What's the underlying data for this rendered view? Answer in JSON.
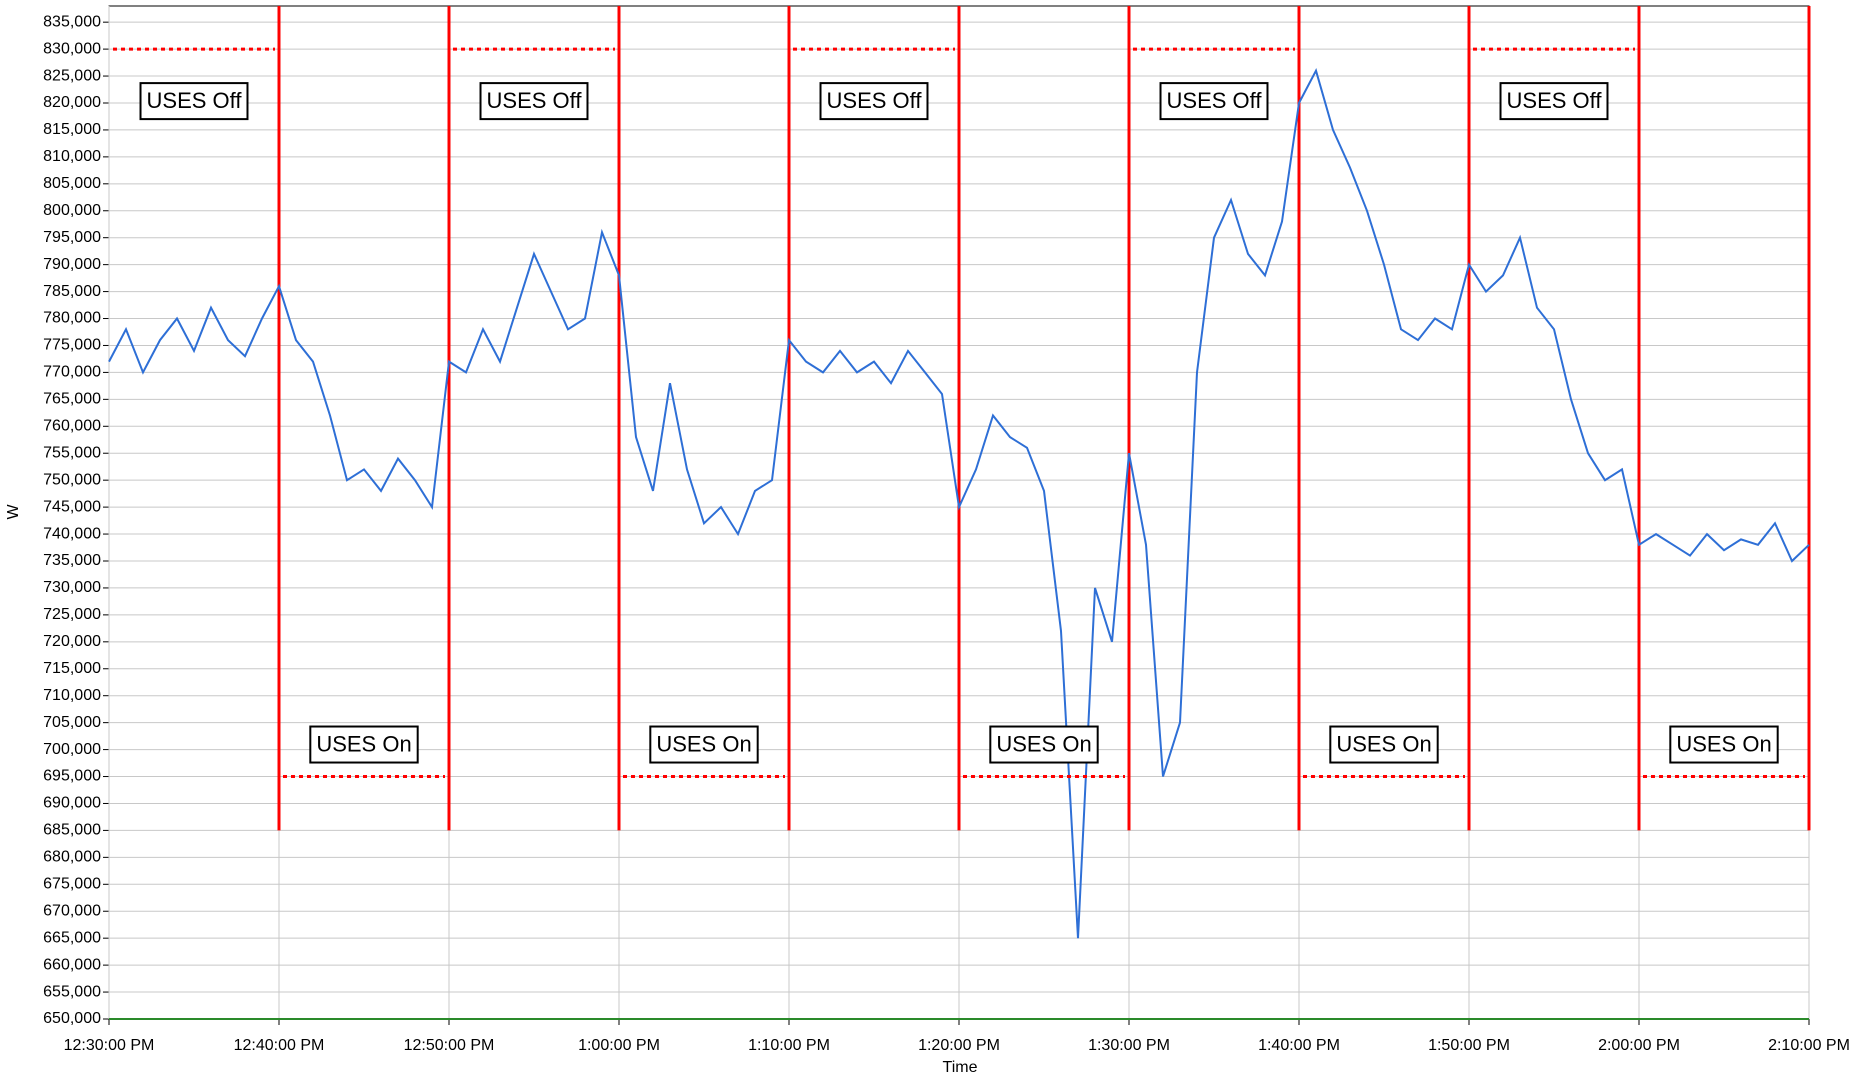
{
  "chart_data": {
    "type": "line",
    "x_label": "Time",
    "y_label": "W",
    "x": [
      "12:30:00 PM",
      "12:31:00 PM",
      "12:32:00 PM",
      "12:33:00 PM",
      "12:34:00 PM",
      "12:35:00 PM",
      "12:36:00 PM",
      "12:37:00 PM",
      "12:38:00 PM",
      "12:39:00 PM",
      "12:40:00 PM",
      "12:41:00 PM",
      "12:42:00 PM",
      "12:43:00 PM",
      "12:44:00 PM",
      "12:45:00 PM",
      "12:46:00 PM",
      "12:47:00 PM",
      "12:48:00 PM",
      "12:49:00 PM",
      "12:50:00 PM",
      "12:51:00 PM",
      "12:52:00 PM",
      "12:53:00 PM",
      "12:54:00 PM",
      "12:55:00 PM",
      "12:56:00 PM",
      "12:57:00 PM",
      "12:58:00 PM",
      "12:59:00 PM",
      "1:00:00 PM",
      "1:01:00 PM",
      "1:02:00 PM",
      "1:03:00 PM",
      "1:04:00 PM",
      "1:05:00 PM",
      "1:06:00 PM",
      "1:07:00 PM",
      "1:08:00 PM",
      "1:09:00 PM",
      "1:10:00 PM",
      "1:11:00 PM",
      "1:12:00 PM",
      "1:13:00 PM",
      "1:14:00 PM",
      "1:15:00 PM",
      "1:16:00 PM",
      "1:17:00 PM",
      "1:18:00 PM",
      "1:19:00 PM",
      "1:20:00 PM",
      "1:21:00 PM",
      "1:22:00 PM",
      "1:23:00 PM",
      "1:24:00 PM",
      "1:25:00 PM",
      "1:26:00 PM",
      "1:27:00 PM",
      "1:28:00 PM",
      "1:29:00 PM",
      "1:30:00 PM",
      "1:31:00 PM",
      "1:32:00 PM",
      "1:33:00 PM",
      "1:34:00 PM",
      "1:35:00 PM",
      "1:36:00 PM",
      "1:37:00 PM",
      "1:38:00 PM",
      "1:39:00 PM",
      "1:40:00 PM",
      "1:41:00 PM",
      "1:42:00 PM",
      "1:43:00 PM",
      "1:44:00 PM",
      "1:45:00 PM",
      "1:46:00 PM",
      "1:47:00 PM",
      "1:48:00 PM",
      "1:49:00 PM",
      "1:50:00 PM",
      "1:51:00 PM",
      "1:52:00 PM",
      "1:53:00 PM",
      "1:54:00 PM",
      "1:55:00 PM",
      "1:56:00 PM",
      "1:57:00 PM",
      "1:58:00 PM",
      "1:59:00 PM",
      "2:00:00 PM",
      "2:01:00 PM",
      "2:02:00 PM",
      "2:03:00 PM",
      "2:04:00 PM",
      "2:05:00 PM",
      "2:06:00 PM",
      "2:07:00 PM",
      "2:08:00 PM",
      "2:09:00 PM",
      "2:10:00 PM"
    ],
    "series": [
      {
        "name": "W",
        "color": "#2e6fd6",
        "values": [
          772000,
          778000,
          770000,
          776000,
          780000,
          774000,
          782000,
          776000,
          773000,
          780000,
          786000,
          776000,
          772000,
          762000,
          750000,
          752000,
          748000,
          754000,
          750000,
          745000,
          772000,
          770000,
          778000,
          772000,
          782000,
          792000,
          785000,
          778000,
          780000,
          796000,
          788000,
          758000,
          748000,
          768000,
          752000,
          742000,
          745000,
          740000,
          748000,
          750000,
          776000,
          772000,
          770000,
          774000,
          770000,
          772000,
          768000,
          774000,
          770000,
          766000,
          745000,
          752000,
          762000,
          758000,
          756000,
          748000,
          722000,
          665000,
          730000,
          720000,
          755000,
          738000,
          695000,
          705000,
          770000,
          795000,
          802000,
          792000,
          788000,
          798000,
          820000,
          826000,
          815000,
          808000,
          800000,
          790000,
          778000,
          776000,
          780000,
          778000,
          790000,
          785000,
          788000,
          795000,
          782000,
          778000,
          765000,
          755000,
          750000,
          752000,
          738000,
          740000,
          738000,
          736000,
          740000,
          737000,
          739000,
          738000,
          742000,
          735000,
          738000
        ]
      }
    ],
    "xlim": [
      "12:30:00 PM",
      "2:10:00 PM"
    ],
    "xticks": [
      "12:30:00 PM",
      "12:40:00 PM",
      "12:50:00 PM",
      "1:00:00 PM",
      "1:10:00 PM",
      "1:20:00 PM",
      "1:30:00 PM",
      "1:40:00 PM",
      "1:50:00 PM",
      "2:00:00 PM",
      "2:10:00 PM"
    ],
    "ylim": [
      650000,
      838000
    ],
    "yticks": [
      {
        "value": 650000,
        "label": "650,000"
      },
      {
        "value": 655000,
        "label": "655,000"
      },
      {
        "value": 660000,
        "label": "660,000"
      },
      {
        "value": 665000,
        "label": "665,000"
      },
      {
        "value": 670000,
        "label": "670,000"
      },
      {
        "value": 675000,
        "label": "675,000"
      },
      {
        "value": 680000,
        "label": "680,000"
      },
      {
        "value": 685000,
        "label": "685,000"
      },
      {
        "value": 690000,
        "label": "690,000"
      },
      {
        "value": 695000,
        "label": "695,000"
      },
      {
        "value": 700000,
        "label": "700,000"
      },
      {
        "value": 705000,
        "label": "705,000"
      },
      {
        "value": 710000,
        "label": "710,000"
      },
      {
        "value": 715000,
        "label": "715,000"
      },
      {
        "value": 720000,
        "label": "720,000"
      },
      {
        "value": 725000,
        "label": "725,000"
      },
      {
        "value": 730000,
        "label": "730,000"
      },
      {
        "value": 735000,
        "label": "735,000"
      },
      {
        "value": 740000,
        "label": "740,000"
      },
      {
        "value": 745000,
        "label": "745,000"
      },
      {
        "value": 750000,
        "label": "750,000"
      },
      {
        "value": 755000,
        "label": "755,000"
      },
      {
        "value": 760000,
        "label": "760,000"
      },
      {
        "value": 765000,
        "label": "765,000"
      },
      {
        "value": 770000,
        "label": "770,000"
      },
      {
        "value": 775000,
        "label": "775,000"
      },
      {
        "value": 780000,
        "label": "780,000"
      },
      {
        "value": 785000,
        "label": "785,000"
      },
      {
        "value": 790000,
        "label": "790,000"
      },
      {
        "value": 795000,
        "label": "795,000"
      },
      {
        "value": 800000,
        "label": "800,000"
      },
      {
        "value": 805000,
        "label": "805,000"
      },
      {
        "value": 810000,
        "label": "810,000"
      },
      {
        "value": 815000,
        "label": "815,000"
      },
      {
        "value": 820000,
        "label": "820,000"
      },
      {
        "value": 825000,
        "label": "825,000"
      },
      {
        "value": 830000,
        "label": "830,000"
      },
      {
        "value": 835000,
        "label": "835,000"
      }
    ],
    "grid": true,
    "annotations": [
      {
        "text": "USES Off",
        "x1": "12:30:00 PM",
        "x2": "12:40:00 PM",
        "level": 830000
      },
      {
        "text": "USES On",
        "x1": "12:40:00 PM",
        "x2": "12:50:00 PM",
        "level": 695000
      },
      {
        "text": "USES Off",
        "x1": "12:50:00 PM",
        "x2": "1:00:00 PM",
        "level": 830000
      },
      {
        "text": "USES On",
        "x1": "1:00:00 PM",
        "x2": "1:10:00 PM",
        "level": 695000
      },
      {
        "text": "USES Off",
        "x1": "1:10:00 PM",
        "x2": "1:20:00 PM",
        "level": 830000
      },
      {
        "text": "USES On",
        "x1": "1:20:00 PM",
        "x2": "1:30:00 PM",
        "level": 695000
      },
      {
        "text": "USES Off",
        "x1": "1:30:00 PM",
        "x2": "1:40:00 PM",
        "level": 830000
      },
      {
        "text": "USES On",
        "x1": "1:40:00 PM",
        "x2": "1:50:00 PM",
        "level": 695000
      },
      {
        "text": "USES Off",
        "x1": "1:50:00 PM",
        "x2": "2:00:00 PM",
        "level": 830000
      },
      {
        "text": "USES On",
        "x1": "2:00:00 PM",
        "x2": "2:10:00 PM",
        "level": 695000
      }
    ],
    "switch_lines": {
      "x": [
        "12:40:00 PM",
        "12:50:00 PM",
        "1:00:00 PM",
        "1:10:00 PM",
        "1:20:00 PM",
        "1:30:00 PM",
        "1:40:00 PM",
        "1:50:00 PM",
        "2:00:00 PM",
        "2:10:00 PM"
      ],
      "range": [
        685000,
        838000
      ],
      "color": "#ff0000"
    }
  }
}
